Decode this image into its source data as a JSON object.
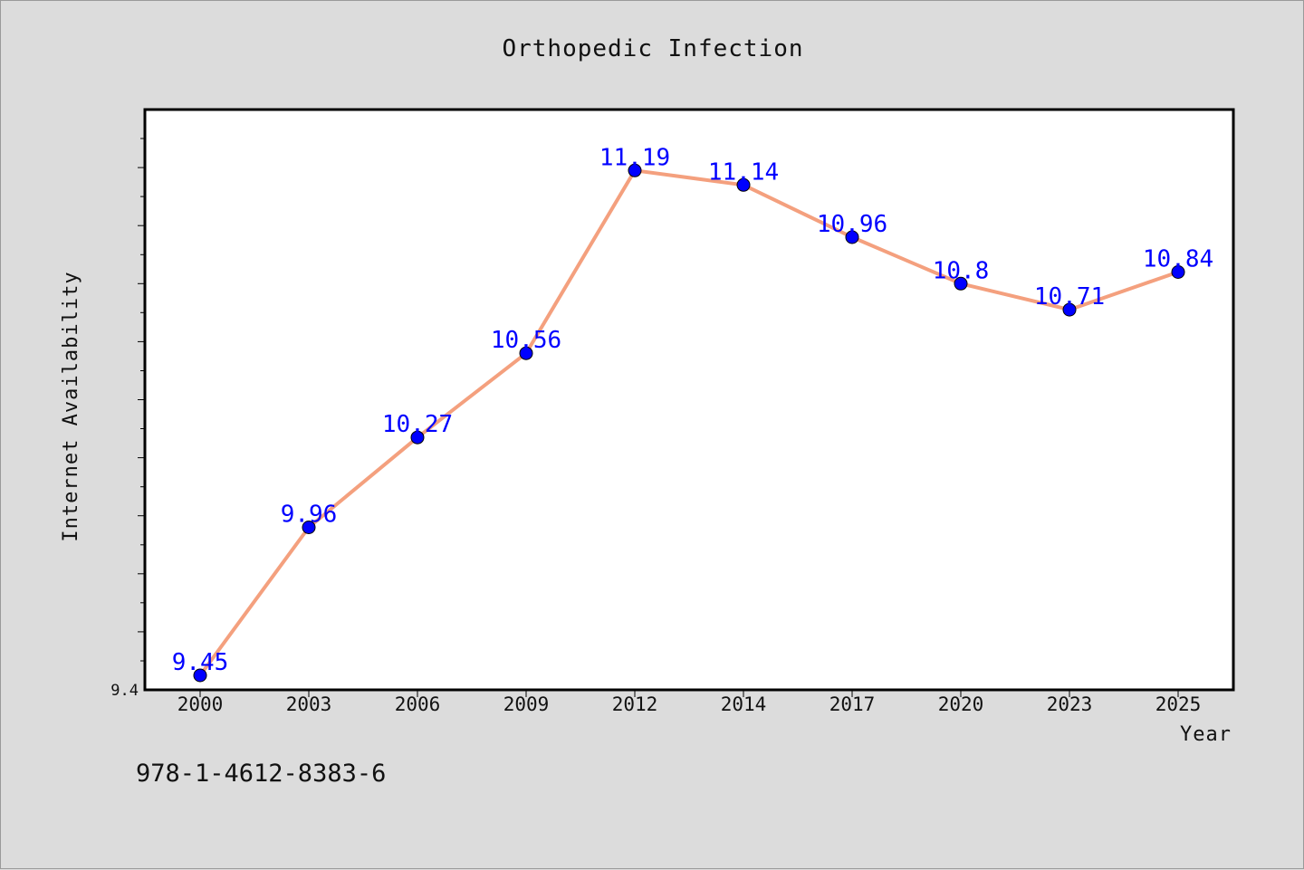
{
  "chart_data": {
    "type": "line",
    "title": "Orthopedic Infection",
    "xlabel": "Year",
    "ylabel": "Internet Availability",
    "categories": [
      "2000",
      "2003",
      "2006",
      "2009",
      "2012",
      "2014",
      "2017",
      "2020",
      "2023",
      "2025"
    ],
    "series": [
      {
        "values": [
          9.45,
          9.96,
          10.27,
          10.56,
          11.19,
          11.14,
          10.96,
          10.8,
          10.71,
          10.84
        ],
        "labels": [
          "9.45",
          "9.96",
          "10.27",
          "10.56",
          "11.19",
          "11.14",
          "10.96",
          "10.8",
          "10.71",
          "10.84"
        ]
      }
    ],
    "ylim": [
      9.4,
      11.4
    ],
    "y_tick_labels": [
      "9.4"
    ],
    "grid": false,
    "legend": "none",
    "colors": {
      "line": "#f4a07e",
      "marker": "#0000ff",
      "data_label": "#0000ff",
      "background": "#dcdcdc",
      "plot_area": "#ffffff"
    }
  },
  "footer": {
    "isbn": "978-1-4612-8383-6"
  }
}
